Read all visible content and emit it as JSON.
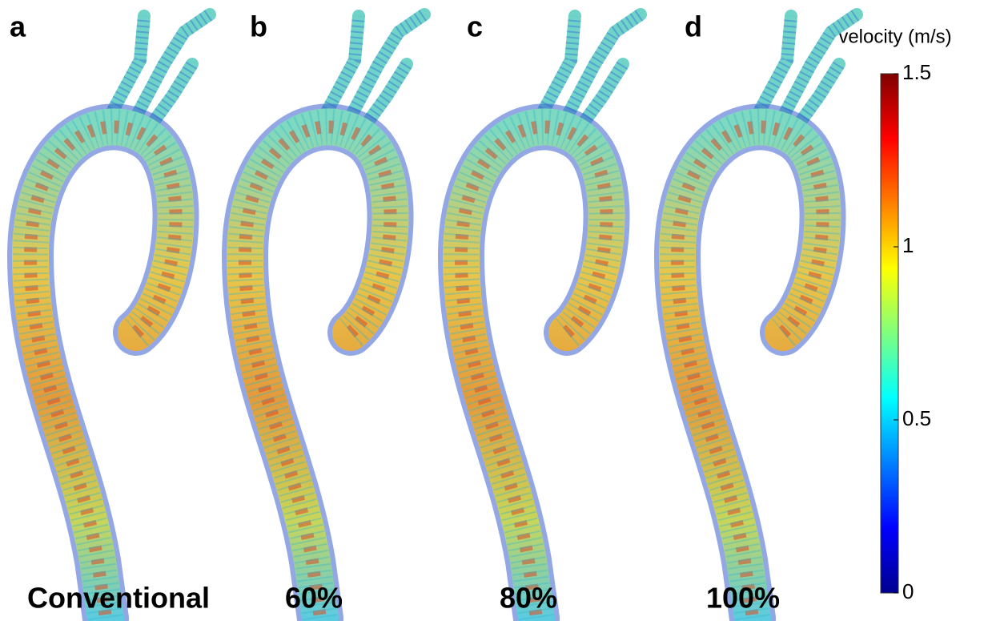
{
  "panels": [
    {
      "letter": "a",
      "label": "Conventional"
    },
    {
      "letter": "b",
      "label": "60%"
    },
    {
      "letter": "c",
      "label": "80%"
    },
    {
      "letter": "d",
      "label": "100%"
    }
  ],
  "colorbar": {
    "title": "velocity (m/s)",
    "lim": [
      0,
      1.5
    ],
    "ticks": [
      0,
      0.5,
      1,
      1.5
    ]
  }
}
